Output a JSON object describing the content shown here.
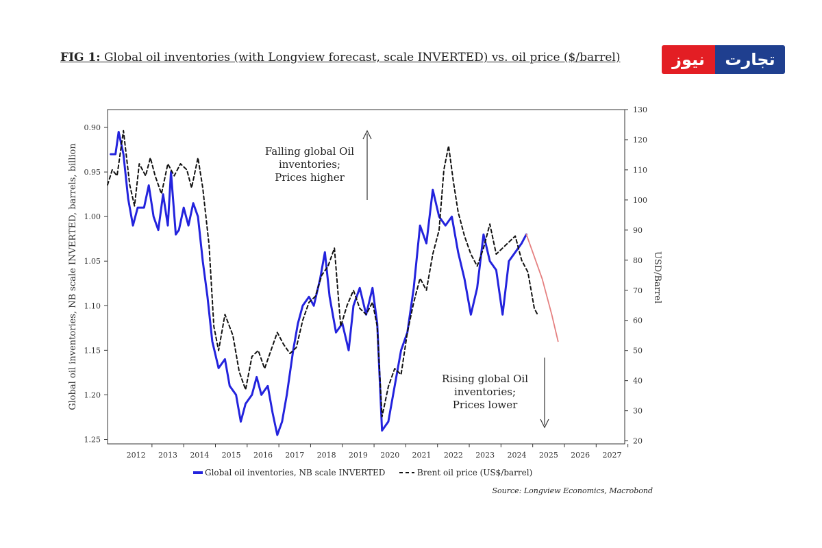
{
  "header": {
    "title_bold": "FIG 1:",
    "title_rest": " Global oil inventories (with Longview forecast, scale INVERTED) vs. oil price ($/barrel)",
    "logo_red": "نیوز",
    "logo_blue": "تجارت"
  },
  "chart_data": {
    "type": "line",
    "title": "FIG 1: Global oil inventories (with Longview forecast, scale INVERTED) vs. oil price ($/barrel)",
    "x_range": [
      2011.6,
      2027.9
    ],
    "x_ticks": [
      "2012",
      "2013",
      "2014",
      "2015",
      "2016",
      "2017",
      "2018",
      "2019",
      "2020",
      "2021",
      "2022",
      "2023",
      "2024",
      "2025",
      "2026",
      "2027"
    ],
    "y_left": {
      "label": "Global oil inventories, NB scale INVERTED, barrels, billion",
      "range": [
        0.88,
        1.255
      ],
      "inverted": true,
      "ticks": [
        "0.90",
        "0.95",
        "1.00",
        "1.05",
        "1.10",
        "1.15",
        "1.20",
        "1.25"
      ]
    },
    "y_right": {
      "label": "USD/Barrel",
      "range": [
        19,
        130
      ],
      "ticks": [
        "130",
        "120",
        "110",
        "100",
        "90",
        "80",
        "70",
        "60",
        "50",
        "40",
        "30",
        "20"
      ]
    },
    "series": [
      {
        "name": "Global oil inventories, NB scale INVERTED",
        "color": "#2323dd",
        "axis": "left",
        "style": "solid",
        "points": [
          [
            2011.7,
            0.93
          ],
          [
            2011.85,
            0.93
          ],
          [
            2011.95,
            0.905
          ],
          [
            2012.1,
            0.93
          ],
          [
            2012.25,
            0.98
          ],
          [
            2012.4,
            1.01
          ],
          [
            2012.55,
            0.99
          ],
          [
            2012.75,
            0.99
          ],
          [
            2012.9,
            0.965
          ],
          [
            2013.05,
            1.0
          ],
          [
            2013.2,
            1.015
          ],
          [
            2013.35,
            0.975
          ],
          [
            2013.5,
            1.01
          ],
          [
            2013.6,
            0.95
          ],
          [
            2013.75,
            1.02
          ],
          [
            2013.85,
            1.015
          ],
          [
            2014.0,
            0.99
          ],
          [
            2014.15,
            1.01
          ],
          [
            2014.3,
            0.985
          ],
          [
            2014.45,
            1.0
          ],
          [
            2014.6,
            1.05
          ],
          [
            2014.75,
            1.09
          ],
          [
            2014.9,
            1.14
          ],
          [
            2015.1,
            1.17
          ],
          [
            2015.3,
            1.16
          ],
          [
            2015.45,
            1.19
          ],
          [
            2015.65,
            1.2
          ],
          [
            2015.8,
            1.23
          ],
          [
            2015.95,
            1.21
          ],
          [
            2016.15,
            1.2
          ],
          [
            2016.3,
            1.18
          ],
          [
            2016.45,
            1.2
          ],
          [
            2016.65,
            1.19
          ],
          [
            2016.8,
            1.22
          ],
          [
            2016.95,
            1.245
          ],
          [
            2017.1,
            1.23
          ],
          [
            2017.25,
            1.2
          ],
          [
            2017.45,
            1.15
          ],
          [
            2017.6,
            1.12
          ],
          [
            2017.75,
            1.1
          ],
          [
            2017.95,
            1.09
          ],
          [
            2018.1,
            1.1
          ],
          [
            2018.3,
            1.07
          ],
          [
            2018.45,
            1.04
          ],
          [
            2018.6,
            1.09
          ],
          [
            2018.8,
            1.13
          ],
          [
            2019.0,
            1.12
          ],
          [
            2019.2,
            1.15
          ],
          [
            2019.35,
            1.1
          ],
          [
            2019.55,
            1.08
          ],
          [
            2019.75,
            1.11
          ],
          [
            2019.95,
            1.08
          ],
          [
            2020.1,
            1.12
          ],
          [
            2020.25,
            1.24
          ],
          [
            2020.45,
            1.23
          ],
          [
            2020.65,
            1.19
          ],
          [
            2020.85,
            1.15
          ],
          [
            2021.05,
            1.13
          ],
          [
            2021.25,
            1.08
          ],
          [
            2021.45,
            1.01
          ],
          [
            2021.65,
            1.03
          ],
          [
            2021.85,
            0.97
          ],
          [
            2022.05,
            1.0
          ],
          [
            2022.25,
            1.01
          ],
          [
            2022.45,
            1.0
          ],
          [
            2022.65,
            1.04
          ],
          [
            2022.85,
            1.07
          ],
          [
            2023.05,
            1.11
          ],
          [
            2023.25,
            1.08
          ],
          [
            2023.45,
            1.02
          ],
          [
            2023.65,
            1.05
          ],
          [
            2023.85,
            1.06
          ],
          [
            2024.05,
            1.11
          ],
          [
            2024.25,
            1.05
          ],
          [
            2024.45,
            1.04
          ],
          [
            2024.65,
            1.03
          ],
          [
            2024.8,
            1.02
          ]
        ]
      },
      {
        "name": "Global oil inventories forecast",
        "color": "#e58080",
        "axis": "left",
        "style": "solid",
        "points": [
          [
            2024.8,
            1.02
          ],
          [
            2025.0,
            1.04
          ],
          [
            2025.3,
            1.07
          ],
          [
            2025.6,
            1.11
          ],
          [
            2025.8,
            1.14
          ]
        ]
      },
      {
        "name": "Brent oil price (US$/barrel)",
        "color": "#111111",
        "axis": "right",
        "style": "dashed",
        "points": [
          [
            2011.6,
            105
          ],
          [
            2011.75,
            110
          ],
          [
            2011.9,
            108
          ],
          [
            2012.1,
            123
          ],
          [
            2012.3,
            105
          ],
          [
            2012.45,
            98
          ],
          [
            2012.6,
            112
          ],
          [
            2012.8,
            108
          ],
          [
            2012.95,
            114
          ],
          [
            2013.1,
            108
          ],
          [
            2013.3,
            102
          ],
          [
            2013.5,
            112
          ],
          [
            2013.7,
            108
          ],
          [
            2013.9,
            112
          ],
          [
            2014.1,
            110
          ],
          [
            2014.25,
            104
          ],
          [
            2014.45,
            114
          ],
          [
            2014.6,
            104
          ],
          [
            2014.8,
            85
          ],
          [
            2014.95,
            58
          ],
          [
            2015.1,
            50
          ],
          [
            2015.3,
            62
          ],
          [
            2015.55,
            55
          ],
          [
            2015.75,
            43
          ],
          [
            2015.95,
            37
          ],
          [
            2016.15,
            48
          ],
          [
            2016.35,
            50
          ],
          [
            2016.55,
            44
          ],
          [
            2016.75,
            50
          ],
          [
            2016.95,
            56
          ],
          [
            2017.15,
            52
          ],
          [
            2017.35,
            49
          ],
          [
            2017.55,
            51
          ],
          [
            2017.75,
            60
          ],
          [
            2017.95,
            66
          ],
          [
            2018.15,
            68
          ],
          [
            2018.35,
            75
          ],
          [
            2018.55,
            78
          ],
          [
            2018.75,
            84
          ],
          [
            2018.95,
            58
          ],
          [
            2019.15,
            65
          ],
          [
            2019.35,
            70
          ],
          [
            2019.55,
            64
          ],
          [
            2019.75,
            62
          ],
          [
            2019.95,
            66
          ],
          [
            2020.1,
            58
          ],
          [
            2020.25,
            28
          ],
          [
            2020.45,
            38
          ],
          [
            2020.65,
            44
          ],
          [
            2020.85,
            42
          ],
          [
            2021.05,
            56
          ],
          [
            2021.25,
            66
          ],
          [
            2021.45,
            74
          ],
          [
            2021.65,
            70
          ],
          [
            2021.85,
            82
          ],
          [
            2022.05,
            90
          ],
          [
            2022.2,
            110
          ],
          [
            2022.35,
            118
          ],
          [
            2022.5,
            106
          ],
          [
            2022.65,
            96
          ],
          [
            2022.85,
            88
          ],
          [
            2023.05,
            82
          ],
          [
            2023.25,
            78
          ],
          [
            2023.45,
            84
          ],
          [
            2023.65,
            92
          ],
          [
            2023.85,
            82
          ],
          [
            2024.05,
            84
          ],
          [
            2024.25,
            86
          ],
          [
            2024.45,
            88
          ],
          [
            2024.65,
            80
          ],
          [
            2024.85,
            76
          ],
          [
            2025.05,
            64
          ],
          [
            2025.15,
            62
          ]
        ]
      }
    ],
    "annotations": {
      "top": [
        "Falling global Oil",
        "inventories;",
        "Prices higher"
      ],
      "bottom": [
        "Rising global Oil",
        "inventories;",
        "Prices lower"
      ]
    },
    "legend": {
      "inventories": "Global oil inventories, NB scale INVERTED",
      "price": "Brent oil price (US$/barrel)"
    },
    "source": "Source: Longview Economics, Macrobond"
  }
}
